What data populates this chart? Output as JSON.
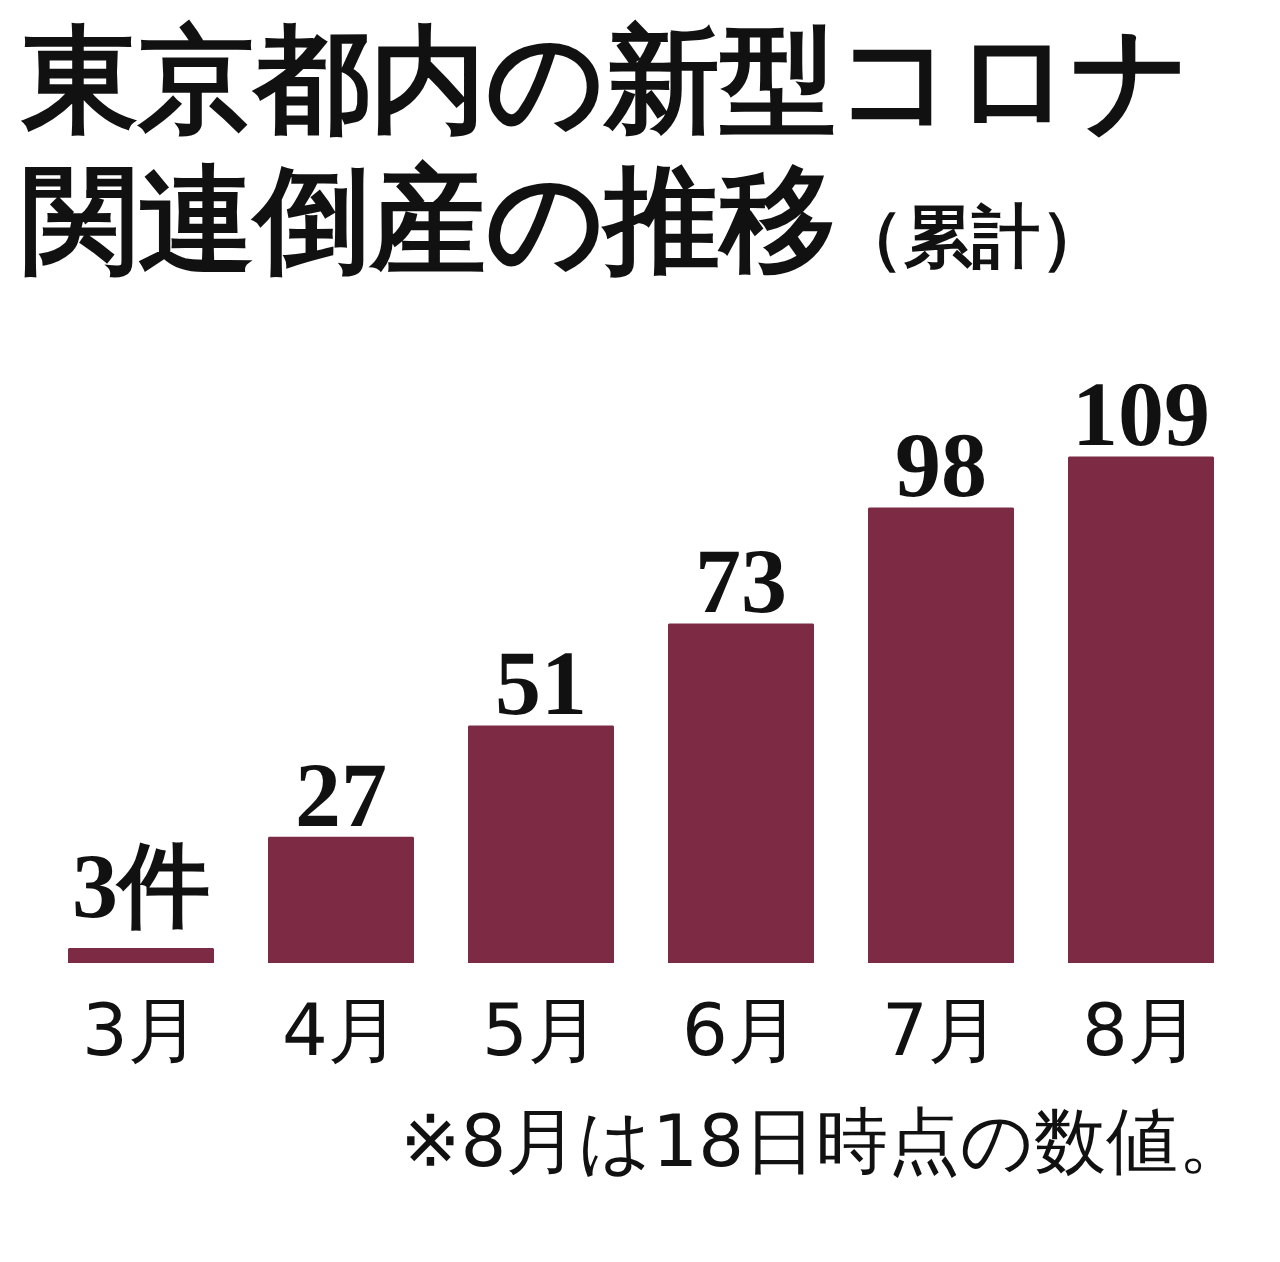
{
  "chart_data": {
    "type": "bar",
    "title": "東京都内の新型コロナ関連倒産の推移",
    "subtitle": "（累計）",
    "categories": [
      "3月",
      "4月",
      "5月",
      "6月",
      "7月",
      "8月"
    ],
    "values": [
      3,
      27,
      51,
      73,
      98,
      109
    ],
    "color": "#7d2b45",
    "value_labels": [
      "3件",
      "27",
      "51",
      "73",
      "98",
      "109"
    ],
    "annotations": [
      "※8月は18日時点の数値。"
    ]
  }
}
